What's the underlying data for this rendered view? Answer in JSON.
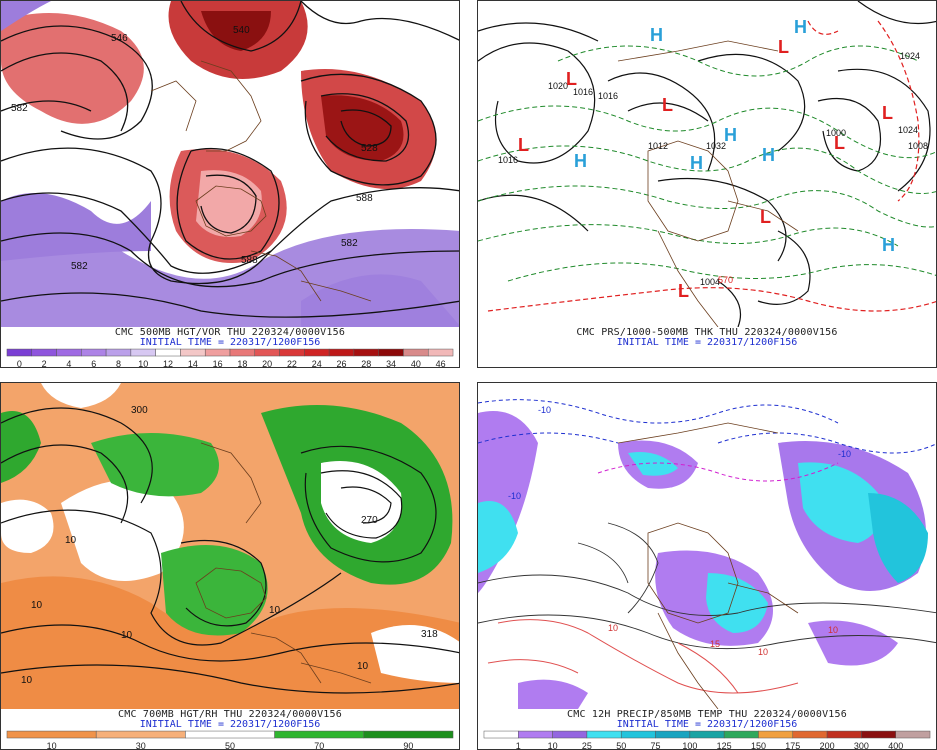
{
  "panels": [
    {
      "id": "p1",
      "line1": "CMC 500MB HGT/VOR THU 220324/0000V156",
      "line2": "INITIAL TIME = 220317/1200F156",
      "colorbar": {
        "labels": [
          "0",
          "2",
          "4",
          "6",
          "8",
          "10",
          "12",
          "14",
          "16",
          "18",
          "20",
          "22",
          "24",
          "26",
          "28",
          "34",
          "40",
          "46"
        ],
        "colors": [
          "#7a3fd4",
          "#8f55dd",
          "#9f6ae3",
          "#ad83e6",
          "#bba0ea",
          "#d7c8f2",
          "#ffffff",
          "#f3c7c7",
          "#ef9e9e",
          "#e87878",
          "#e25656",
          "#d93838",
          "#cf2424",
          "#be1818",
          "#a61010",
          "#8c0808",
          "#d88a8a",
          "#f1b8b8"
        ]
      },
      "map_labels": [
        "546",
        "540",
        "528",
        "582",
        "582",
        "588",
        "588",
        "582"
      ],
      "highs_lows": []
    },
    {
      "id": "p2",
      "line1": "CMC PRS/1000-500MB THK THU 220324/0000V156",
      "line2": "INITIAL TIME = 220317/1200F156",
      "colorbar": null,
      "map_labels": [
        "1016",
        "1016",
        "1016",
        "1012",
        "1032",
        "1024",
        "1024",
        "1000",
        "1008",
        "1004",
        "570",
        "1020"
      ],
      "highs_lows": [
        "H",
        "H",
        "H",
        "H",
        "H",
        "H",
        "H",
        "L",
        "L",
        "L",
        "L",
        "L",
        "L",
        "L",
        "L"
      ]
    },
    {
      "id": "p3",
      "line1": "CMC 700MB HGT/RH THU 220324/0000V156",
      "line2": "INITIAL TIME = 220317/1200F156",
      "colorbar": {
        "labels": [
          "10",
          "30",
          "50",
          "70",
          "90"
        ],
        "colors": [
          "#f0934a",
          "#f6b07a",
          "#ffffff",
          "#2fb52f",
          "#1e8f1e"
        ]
      },
      "map_labels": [
        "300",
        "10",
        "10",
        "10",
        "270",
        "318",
        "10",
        "10",
        "10"
      ],
      "highs_lows": []
    },
    {
      "id": "p4",
      "line1": "CMC 12H PRECIP/850MB TEMP THU 220324/0000V156",
      "line2": "INITIAL TIME = 220317/1200F156",
      "colorbar": {
        "labels": [
          "1",
          "10",
          "25",
          "50",
          "75",
          "100",
          "125",
          "150",
          "175",
          "200",
          "300",
          "400"
        ],
        "colors": [
          "#ffffff",
          "#b07cf0",
          "#9466e0",
          "#40e0f0",
          "#22c4dc",
          "#1aa4c0",
          "#1aa4a4",
          "#2ea85c",
          "#f0a040",
          "#e06830",
          "#c03020",
          "#8a1010",
          "#c0a0a0"
        ]
      },
      "map_labels": [
        "-10",
        "-10",
        "-10",
        "10",
        "10",
        "10",
        "15"
      ],
      "highs_lows": []
    }
  ]
}
